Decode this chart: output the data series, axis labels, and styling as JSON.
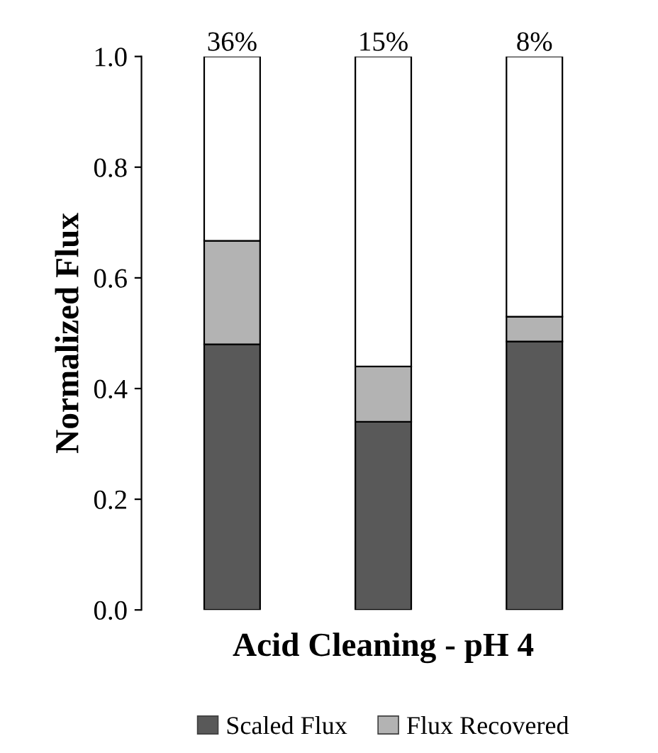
{
  "chart_data": {
    "type": "bar",
    "stacked": true,
    "categories": [
      null,
      null,
      null
    ],
    "xlabel": "Acid Cleaning - pH 4",
    "ylabel": "Normalized Flux",
    "series": [
      {
        "name": "Scaled Flux",
        "color": "#595959",
        "values": [
          0.48,
          0.34,
          0.485
        ]
      },
      {
        "name": "Flux Recovered",
        "color": "#b3b3b3",
        "values": [
          0.187,
          0.1,
          0.045
        ]
      },
      {
        "color": "#ffffff",
        "values": [
          0.333,
          0.56,
          0.47
        ]
      }
    ],
    "annotations": [
      "36%",
      "15%",
      "8%"
    ],
    "ylim": [
      0,
      1.0
    ],
    "yticks": [
      {
        "value": 0,
        "label": "0.0"
      },
      {
        "value": 0.2,
        "label": "0.2"
      },
      {
        "value": 0.4,
        "label": "0.4"
      },
      {
        "value": 0.6,
        "label": "0.6"
      },
      {
        "value": 0.8,
        "label": "0.8"
      },
      {
        "value": 1.0,
        "label": "1.0"
      }
    ],
    "legend": "bottom",
    "grid": false
  }
}
